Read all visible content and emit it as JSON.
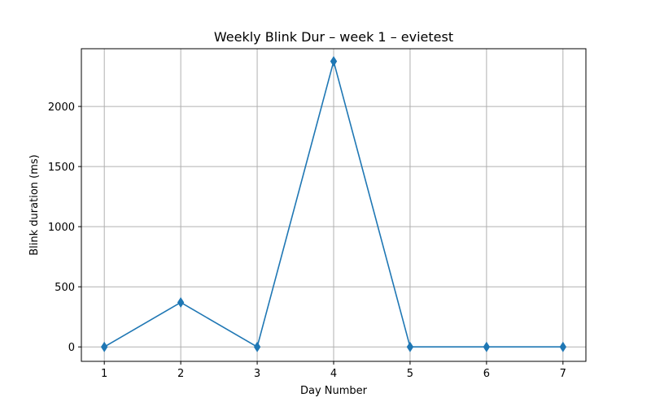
{
  "chart_data": {
    "type": "line",
    "title": "Weekly Blink Dur – week 1 – evietest",
    "xlabel": "Day Number",
    "ylabel": "Blink duration (ms)",
    "x": [
      1,
      2,
      3,
      4,
      5,
      6,
      7
    ],
    "series": [
      {
        "values": [
          0,
          370,
          0,
          2375,
          0,
          0,
          0
        ],
        "color": "#1f77b4",
        "marker": "thin-diamond"
      }
    ],
    "xticks": [
      "1",
      "2",
      "3",
      "4",
      "5",
      "6",
      "7"
    ],
    "yticks": [
      "0",
      "500",
      "1000",
      "1500",
      "2000"
    ],
    "xlim": [
      0.7,
      7.3
    ],
    "ylim": [
      -120,
      2480
    ],
    "grid": true
  }
}
